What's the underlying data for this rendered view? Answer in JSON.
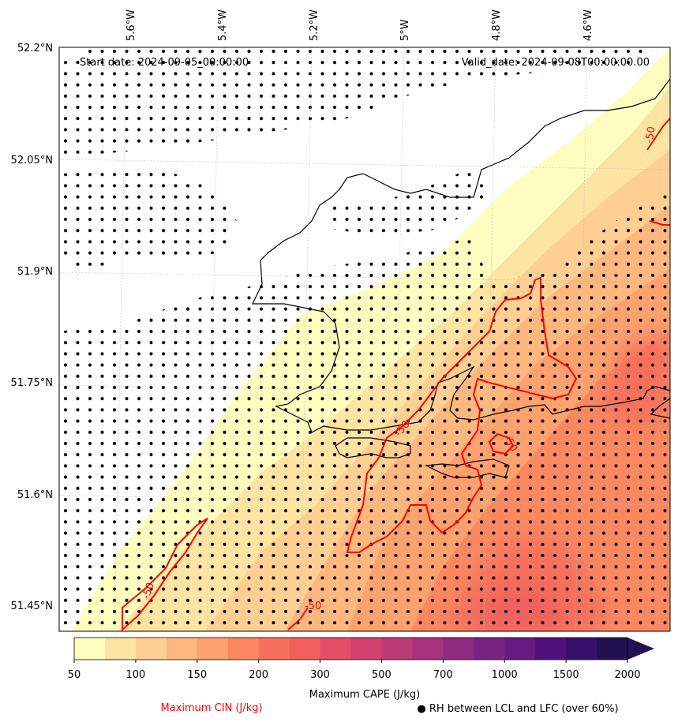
{
  "map": {
    "start_date": "Start date: 2024-09-05_00:00:00",
    "valid_date": "Valid_date: 2024-09-08T00:00:00.00",
    "lon_labels": [
      "5.6°W",
      "5.4°W",
      "5.2°W",
      "5°W",
      "4.8°W",
      "4.6°W"
    ],
    "lat_labels": [
      "52.2°N",
      "52.05°N",
      "51.9°N",
      "51.75°N",
      "51.6°N",
      "51.45°N"
    ],
    "contour_label": "-50"
  },
  "colorbar": {
    "ticks": [
      "50",
      "100",
      "150",
      "200",
      "300",
      "500",
      "700",
      "1000",
      "1500",
      "2000"
    ],
    "colors": [
      "#fcfdbf",
      "#fde4a2",
      "#fecf92",
      "#feb77e",
      "#fda16e",
      "#fb8861",
      "#f7705c",
      "#f1605d",
      "#e34e65",
      "#d2416f",
      "#bc3a75",
      "#a6317d",
      "#8f2a81",
      "#7a2382",
      "#641a80",
      "#4f127b",
      "#36106b",
      "#221150"
    ],
    "label": "Maximum CAPE (J/kg)"
  },
  "legend": {
    "cin": "Maximum CIN (J/kg)",
    "cin_color": "#ff0000",
    "rh": "● RH between LCL and LFC (over 60%)"
  }
}
